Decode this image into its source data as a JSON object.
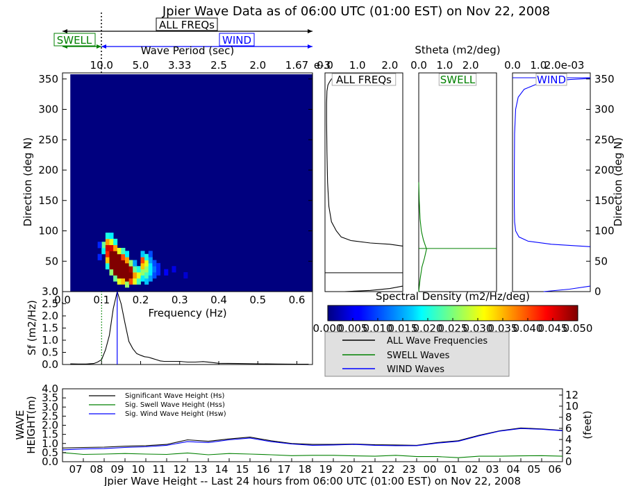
{
  "figure": {
    "title": "Jpier Wave Data as of 06:00 UTC (01:00 EST) on Nov 22, 2008",
    "freq_range_labels": {
      "all": "ALL FREQs",
      "swell": "SWELL",
      "wind": "WIND"
    },
    "colors": {
      "all": "#000000",
      "swell": "#008000",
      "wind": "#0000ff",
      "spectrum_bg": "#00007f",
      "legend_bg": "#e0e0e0"
    }
  },
  "chart_data": [
    {
      "id": "directional_spectrum",
      "type": "heatmap",
      "title": "",
      "xlabel": "Frequency (Hz)",
      "ylabel": "Direction (deg N)",
      "top_axis_label": "Wave Period (sec)",
      "xlim": [
        0.0,
        0.64
      ],
      "ylim": [
        0,
        360
      ],
      "x_ticks": [
        "0.0",
        "0.1",
        "0.2",
        "0.3",
        "0.4",
        "0.5",
        "0.6"
      ],
      "x_tick_values": [
        0.0,
        0.1,
        0.2,
        0.3,
        0.4,
        0.5,
        0.6
      ],
      "y_ticks": [
        "0",
        "50",
        "100",
        "150",
        "200",
        "250",
        "300",
        "350"
      ],
      "y_tick_values": [
        0,
        50,
        100,
        150,
        200,
        250,
        300,
        350
      ],
      "top_ticks": [
        "10.0",
        "5.0",
        "3.33",
        "2.5",
        "2.0",
        "1.67"
      ],
      "top_tick_values": [
        0.1,
        0.2,
        0.3,
        0.4,
        0.5,
        0.6
      ],
      "swell_wind_split_hz": 0.1,
      "data_start_hz": 0.02,
      "cells_note": "f = frequency (Hz), d = direction (deg N), v = spectral density (m2/Hz/deg)",
      "cells": [
        {
          "f": 0.105,
          "d": 67,
          "v": 0.018
        },
        {
          "f": 0.105,
          "d": 77,
          "v": 0.024
        },
        {
          "f": 0.115,
          "d": 42,
          "v": 0.02
        },
        {
          "f": 0.115,
          "d": 52,
          "v": 0.034
        },
        {
          "f": 0.115,
          "d": 62,
          "v": 0.042
        },
        {
          "f": 0.115,
          "d": 72,
          "v": 0.046
        },
        {
          "f": 0.115,
          "d": 82,
          "v": 0.036
        },
        {
          "f": 0.115,
          "d": 92,
          "v": 0.02
        },
        {
          "f": 0.125,
          "d": 32,
          "v": 0.026
        },
        {
          "f": 0.125,
          "d": 42,
          "v": 0.05
        },
        {
          "f": 0.125,
          "d": 52,
          "v": 0.05
        },
        {
          "f": 0.125,
          "d": 62,
          "v": 0.05
        },
        {
          "f": 0.125,
          "d": 72,
          "v": 0.046
        },
        {
          "f": 0.125,
          "d": 82,
          "v": 0.03
        },
        {
          "f": 0.125,
          "d": 92,
          "v": 0.018
        },
        {
          "f": 0.135,
          "d": 22,
          "v": 0.024
        },
        {
          "f": 0.135,
          "d": 32,
          "v": 0.05
        },
        {
          "f": 0.135,
          "d": 42,
          "v": 0.05
        },
        {
          "f": 0.135,
          "d": 52,
          "v": 0.05
        },
        {
          "f": 0.135,
          "d": 62,
          "v": 0.05
        },
        {
          "f": 0.135,
          "d": 72,
          "v": 0.036
        },
        {
          "f": 0.135,
          "d": 82,
          "v": 0.02
        },
        {
          "f": 0.145,
          "d": 17,
          "v": 0.03
        },
        {
          "f": 0.145,
          "d": 27,
          "v": 0.05
        },
        {
          "f": 0.145,
          "d": 37,
          "v": 0.05
        },
        {
          "f": 0.145,
          "d": 47,
          "v": 0.05
        },
        {
          "f": 0.145,
          "d": 57,
          "v": 0.05
        },
        {
          "f": 0.145,
          "d": 67,
          "v": 0.03
        },
        {
          "f": 0.155,
          "d": 17,
          "v": 0.034
        },
        {
          "f": 0.155,
          "d": 27,
          "v": 0.05
        },
        {
          "f": 0.155,
          "d": 37,
          "v": 0.05
        },
        {
          "f": 0.155,
          "d": 47,
          "v": 0.05
        },
        {
          "f": 0.155,
          "d": 57,
          "v": 0.04
        },
        {
          "f": 0.155,
          "d": 67,
          "v": 0.022
        },
        {
          "f": 0.165,
          "d": 12,
          "v": 0.026
        },
        {
          "f": 0.165,
          "d": 22,
          "v": 0.05
        },
        {
          "f": 0.165,
          "d": 32,
          "v": 0.05
        },
        {
          "f": 0.165,
          "d": 42,
          "v": 0.05
        },
        {
          "f": 0.165,
          "d": 52,
          "v": 0.036
        },
        {
          "f": 0.165,
          "d": 62,
          "v": 0.018
        },
        {
          "f": 0.175,
          "d": 17,
          "v": 0.04
        },
        {
          "f": 0.175,
          "d": 27,
          "v": 0.05
        },
        {
          "f": 0.175,
          "d": 37,
          "v": 0.048
        },
        {
          "f": 0.175,
          "d": 47,
          "v": 0.026
        },
        {
          "f": 0.185,
          "d": 17,
          "v": 0.03
        },
        {
          "f": 0.185,
          "d": 27,
          "v": 0.036
        },
        {
          "f": 0.185,
          "d": 37,
          "v": 0.024
        },
        {
          "f": 0.185,
          "d": 47,
          "v": 0.014
        },
        {
          "f": 0.195,
          "d": 17,
          "v": 0.022
        },
        {
          "f": 0.195,
          "d": 27,
          "v": 0.03
        },
        {
          "f": 0.195,
          "d": 37,
          "v": 0.02
        },
        {
          "f": 0.205,
          "d": 22,
          "v": 0.018
        },
        {
          "f": 0.205,
          "d": 32,
          "v": 0.026
        },
        {
          "f": 0.205,
          "d": 42,
          "v": 0.034
        },
        {
          "f": 0.205,
          "d": 52,
          "v": 0.04
        },
        {
          "f": 0.205,
          "d": 62,
          "v": 0.016
        },
        {
          "f": 0.215,
          "d": 17,
          "v": 0.016
        },
        {
          "f": 0.215,
          "d": 27,
          "v": 0.022
        },
        {
          "f": 0.215,
          "d": 37,
          "v": 0.026
        },
        {
          "f": 0.215,
          "d": 47,
          "v": 0.03
        },
        {
          "f": 0.215,
          "d": 57,
          "v": 0.02
        },
        {
          "f": 0.225,
          "d": 22,
          "v": 0.014
        },
        {
          "f": 0.225,
          "d": 32,
          "v": 0.018
        },
        {
          "f": 0.225,
          "d": 42,
          "v": 0.018
        },
        {
          "f": 0.225,
          "d": 52,
          "v": 0.014
        },
        {
          "f": 0.225,
          "d": 62,
          "v": 0.01
        },
        {
          "f": 0.235,
          "d": 27,
          "v": 0.01
        },
        {
          "f": 0.235,
          "d": 37,
          "v": 0.012
        },
        {
          "f": 0.235,
          "d": 47,
          "v": 0.01
        },
        {
          "f": 0.245,
          "d": 32,
          "v": 0.008
        },
        {
          "f": 0.245,
          "d": 42,
          "v": 0.008
        },
        {
          "f": 0.095,
          "d": 57,
          "v": 0.008
        },
        {
          "f": 0.095,
          "d": 77,
          "v": 0.008
        },
        {
          "f": 0.265,
          "d": 32,
          "v": 0.006
        },
        {
          "f": 0.285,
          "d": 37,
          "v": 0.005
        },
        {
          "f": 0.315,
          "d": 27,
          "v": 0.004
        }
      ]
    },
    {
      "id": "stheta_all",
      "type": "line",
      "panel_label": "ALL FREQs",
      "top_label": "Stheta (m2/deg)",
      "x_ticks": [
        "0.0",
        "1.0",
        "2.0"
      ],
      "x_tick_values": [
        0.0,
        1.0,
        2.0
      ],
      "xlim": [
        0.0,
        2.4
      ],
      "ylim": [
        0,
        360
      ],
      "x_unit_label": "e-3",
      "series": [
        {
          "name": "ALL Wave Frequencies",
          "x": [
            2.4,
            2.0,
            1.4,
            0.8,
            0.5,
            0.35,
            0.2,
            0.12,
            0.08,
            0.06,
            0.05,
            0.05,
            0.06,
            0.09,
            0.14,
            0.2,
            0.3,
            0.45
          ],
          "y": [
            75,
            78,
            80,
            84,
            90,
            100,
            115,
            140,
            180,
            230,
            280,
            310,
            330,
            340,
            345,
            350,
            354,
            358
          ]
        },
        {
          "name": "ALL low",
          "x": [
            0.6,
            1.4,
            2.0,
            2.4
          ],
          "y": [
            0,
            2,
            5,
            9
          ]
        }
      ],
      "marker_direction": 31
    },
    {
      "id": "stheta_swell",
      "type": "line",
      "panel_label": "SWELL",
      "x_ticks": [
        "0.0",
        "1.0",
        "2.0"
      ],
      "x_tick_values": [
        0.0,
        1.0,
        2.0
      ],
      "xlim": [
        0.0,
        3.0
      ],
      "ylim": [
        0,
        360
      ],
      "series": [
        {
          "name": "SWELL",
          "x": [
            0.0,
            0.05,
            0.12,
            0.22,
            0.3,
            0.18,
            0.1,
            0.05,
            0.02,
            0.0
          ],
          "y": [
            0,
            20,
            40,
            55,
            70,
            85,
            100,
            120,
            150,
            180
          ]
        }
      ],
      "marker_direction": 71
    },
    {
      "id": "stheta_wind",
      "type": "line",
      "panel_label": "WIND",
      "x_ticks": [
        "0.0",
        "1.0",
        "2.0e-03"
      ],
      "x_tick_values": [
        0.0,
        1.0,
        2.0
      ],
      "xlim": [
        0.0,
        3.0
      ],
      "ylim": [
        0,
        360
      ],
      "y_ticks_right": [
        "0",
        "50",
        "100",
        "150",
        "200",
        "250",
        "300",
        "350"
      ],
      "y_tick_values": [
        0,
        50,
        100,
        150,
        200,
        250,
        300,
        350
      ],
      "ylabel_right": "Direction (deg N)",
      "series": [
        {
          "name": "WIND",
          "x": [
            3.0,
            1.5,
            0.6,
            0.25,
            0.12,
            0.08,
            0.07,
            0.07,
            0.08,
            0.12,
            0.22,
            0.45,
            0.9,
            1.5,
            2.2,
            3.0
          ],
          "y": [
            74,
            78,
            83,
            90,
            100,
            115,
            140,
            200,
            260,
            300,
            320,
            333,
            341,
            346,
            349,
            351
          ]
        },
        {
          "name": "WIND low",
          "x": [
            1.2,
            2.2,
            3.0
          ],
          "y": [
            0,
            4,
            9
          ]
        }
      ],
      "marker_direction": 352
    },
    {
      "id": "frequency_spectrum",
      "type": "line",
      "xlabel": "Frequency (Hz)",
      "ylabel": "Sf (m2/Hz)",
      "xlim": [
        0.0,
        0.64
      ],
      "ylim": [
        0.0,
        3.0
      ],
      "x_ticks": [
        "0.0",
        "0.1",
        "0.2",
        "0.3",
        "0.4",
        "0.5",
        "0.6"
      ],
      "x_tick_values": [
        0.0,
        0.1,
        0.2,
        0.3,
        0.4,
        0.5,
        0.6
      ],
      "y_ticks": [
        "0.0",
        "0.5",
        "1.0",
        "1.5",
        "2.0",
        "2.5",
        "3.0"
      ],
      "y_tick_values": [
        0.0,
        0.5,
        1.0,
        1.5,
        2.0,
        2.5,
        3.0
      ],
      "series": [
        {
          "name": "ALL Wave Frequencies",
          "x": [
            0.02,
            0.04,
            0.06,
            0.08,
            0.09,
            0.1,
            0.11,
            0.12,
            0.13,
            0.14,
            0.15,
            0.16,
            0.17,
            0.18,
            0.19,
            0.2,
            0.21,
            0.22,
            0.23,
            0.24,
            0.25,
            0.26,
            0.28,
            0.3,
            0.32,
            0.34,
            0.36,
            0.38,
            0.4,
            0.45,
            0.5,
            0.55,
            0.6,
            0.63
          ],
          "y": [
            0.03,
            0.02,
            0.02,
            0.04,
            0.1,
            0.2,
            0.6,
            1.2,
            2.3,
            3.0,
            2.5,
            1.7,
            0.95,
            0.65,
            0.45,
            0.38,
            0.32,
            0.3,
            0.25,
            0.2,
            0.15,
            0.13,
            0.13,
            0.13,
            0.1,
            0.1,
            0.12,
            0.09,
            0.05,
            0.04,
            0.03,
            0.02,
            0.01,
            0.01
          ]
        }
      ],
      "swell_wind_split_hz": 0.1,
      "peak_hz": 0.14
    },
    {
      "id": "colorbar",
      "type": "heatmap",
      "label": "Spectral Density (m2/Hz/deg)",
      "range": [
        0.0,
        0.05
      ],
      "ticks": [
        "0.000",
        "0.005",
        "0.010",
        "0.015",
        "0.020",
        "0.025",
        "0.030",
        "0.035",
        "0.040",
        "0.045",
        "0.050"
      ],
      "tick_values": [
        0.0,
        0.005,
        0.01,
        0.015,
        0.02,
        0.025,
        0.03,
        0.035,
        0.04,
        0.045,
        0.05
      ]
    },
    {
      "id": "wave_height_timeseries",
      "type": "line",
      "xlabel": "Jpier Wave Height -- Last 24 hours from 06:00 UTC (01:00 EST) on Nov 22, 2008",
      "ylabel": "WAVE HEIGHT(m)",
      "ylabel_right": "(feet)",
      "ylim": [
        0.0,
        4.0
      ],
      "y_ticks": [
        "0.0",
        "0.5",
        "1.0",
        "1.5",
        "2.0",
        "2.5",
        "3.0",
        "3.5",
        "4.0"
      ],
      "y_tick_values": [
        0.0,
        0.5,
        1.0,
        1.5,
        2.0,
        2.5,
        3.0,
        3.5,
        4.0
      ],
      "y_ticks_right": [
        "0",
        "2",
        "4",
        "6",
        "8",
        "10",
        "12"
      ],
      "y_tick_right_values": [
        0,
        2,
        4,
        6,
        8,
        10,
        12
      ],
      "categories": [
        "06",
        "07",
        "08",
        "09",
        "10",
        "11",
        "12",
        "13",
        "14",
        "15",
        "16",
        "17",
        "18",
        "19",
        "20",
        "21",
        "22",
        "23",
        "00",
        "01",
        "02",
        "03",
        "04",
        "05",
        "06"
      ],
      "x_tick_labels": [
        "07",
        "08",
        "09",
        "10",
        "11",
        "12",
        "13",
        "14",
        "15",
        "16",
        "17",
        "18",
        "19",
        "20",
        "21",
        "22",
        "23",
        "00",
        "01",
        "02",
        "03",
        "04",
        "05",
        "06"
      ],
      "legend": [
        "Significant Wave Height (Hs)",
        "Sig. Swell Wave Height (Hss)",
        "Sig. Wind Wave Height (Hsw)"
      ],
      "series": [
        {
          "name": "Significant Wave Height (Hs)",
          "values": [
            0.75,
            0.78,
            0.8,
            0.85,
            0.88,
            0.95,
            1.2,
            1.12,
            1.25,
            1.35,
            1.15,
            1.0,
            0.95,
            0.95,
            0.97,
            0.93,
            0.92,
            0.9,
            1.05,
            1.15,
            1.45,
            1.7,
            1.85,
            1.8,
            1.72
          ]
        },
        {
          "name": "Sig. Swell Wave Height (Hss)",
          "values": [
            0.5,
            0.4,
            0.42,
            0.45,
            0.42,
            0.4,
            0.48,
            0.38,
            0.45,
            0.42,
            0.38,
            0.33,
            0.35,
            0.35,
            0.32,
            0.3,
            0.35,
            0.28,
            0.28,
            0.22,
            0.3,
            0.3,
            0.32,
            0.33,
            0.3
          ]
        },
        {
          "name": "Sig. Wind Wave Height (Hsw)",
          "values": [
            0.65,
            0.7,
            0.72,
            0.78,
            0.82,
            0.9,
            1.1,
            1.05,
            1.2,
            1.3,
            1.1,
            0.97,
            0.9,
            0.92,
            0.95,
            0.9,
            0.88,
            0.88,
            1.02,
            1.12,
            1.42,
            1.68,
            1.82,
            1.78,
            1.7
          ]
        }
      ]
    }
  ],
  "legend_box": {
    "items": [
      "ALL Wave Frequencies",
      "SWELL Waves",
      "WIND Waves"
    ]
  }
}
